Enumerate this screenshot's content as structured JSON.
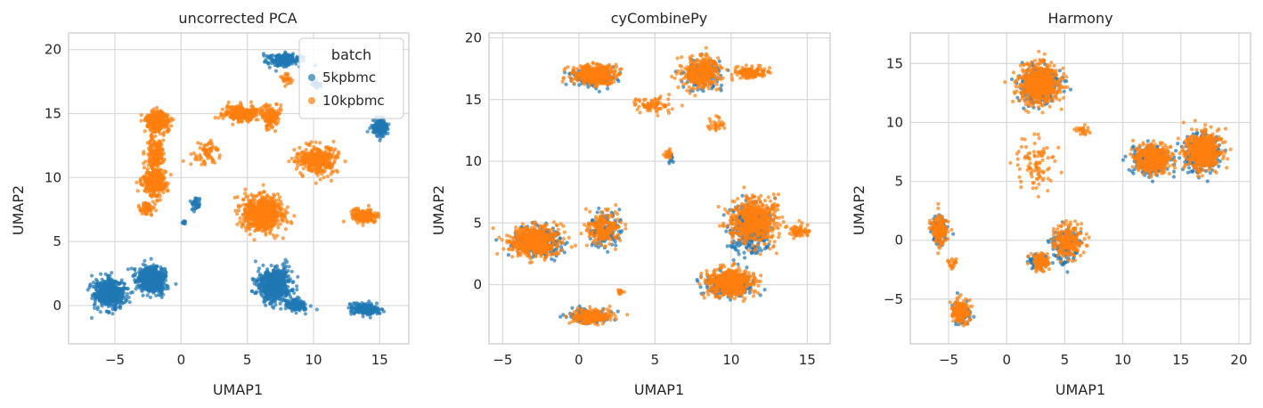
{
  "figure": {
    "marker_colors": {
      "5kpbmc": "#1f77b4",
      "10kpbmc": "#ff7f0e"
    },
    "grid_color": "#d9d9d9",
    "frame_color": "#cccccc"
  },
  "chart_data": [
    {
      "type": "scatter",
      "title": "uncorrected PCA",
      "xlabel": "UMAP1",
      "ylabel": "UMAP2",
      "xlim": [
        -8.5,
        17.2
      ],
      "ylim": [
        -3.0,
        21.3
      ],
      "xticks": [
        -5,
        0,
        5,
        10,
        15
      ],
      "yticks": [
        0,
        5,
        10,
        15,
        20
      ],
      "grid": true,
      "legend": {
        "title": "batch",
        "placement": "top-right",
        "entries": [
          "5kpbmc",
          "10kpbmc"
        ]
      },
      "series": [
        {
          "name": "5kpbmc",
          "color": "#1f77b4",
          "clusters": [
            {
              "x": -5.4,
              "y": 1.0,
              "sx": 1.0,
              "sy": 1.0,
              "n": 520
            },
            {
              "x": -2.2,
              "y": 2.0,
              "sx": 1.0,
              "sy": 0.9,
              "n": 520
            },
            {
              "x": 7.0,
              "y": 1.6,
              "sx": 1.1,
              "sy": 1.2,
              "n": 650
            },
            {
              "x": 8.7,
              "y": 0.0,
              "sx": 0.8,
              "sy": 0.5,
              "n": 120
            },
            {
              "x": 14.0,
              "y": -0.3,
              "sx": 0.9,
              "sy": 0.4,
              "n": 230
            },
            {
              "x": 7.8,
              "y": 19.2,
              "sx": 1.2,
              "sy": 0.45,
              "n": 220
            },
            {
              "x": 15.0,
              "y": 13.9,
              "sx": 0.45,
              "sy": 0.6,
              "n": 210
            },
            {
              "x": 1.1,
              "y": 7.9,
              "sx": 0.4,
              "sy": 0.6,
              "n": 40
            },
            {
              "x": 0.2,
              "y": 6.5,
              "sx": 0.15,
              "sy": 0.15,
              "n": 10
            },
            {
              "x": 10.2,
              "y": 17.3,
              "sx": 0.4,
              "sy": 0.4,
              "n": 25
            }
          ]
        },
        {
          "name": "10kpbmc",
          "color": "#ff7f0e",
          "clusters": [
            {
              "x": -1.8,
              "y": 14.4,
              "sx": 0.8,
              "sy": 0.7,
              "n": 360
            },
            {
              "x": -1.9,
              "y": 11.8,
              "sx": 0.6,
              "sy": 1.2,
              "n": 200
            },
            {
              "x": -2.0,
              "y": 9.6,
              "sx": 0.8,
              "sy": 0.9,
              "n": 320
            },
            {
              "x": -2.6,
              "y": 7.6,
              "sx": 0.5,
              "sy": 0.5,
              "n": 60
            },
            {
              "x": 4.5,
              "y": 15.0,
              "sx": 1.2,
              "sy": 0.55,
              "n": 260
            },
            {
              "x": 6.8,
              "y": 14.7,
              "sx": 0.6,
              "sy": 0.9,
              "n": 130
            },
            {
              "x": 2.0,
              "y": 12.0,
              "sx": 1.0,
              "sy": 0.9,
              "n": 70
            },
            {
              "x": 6.2,
              "y": 7.2,
              "sx": 1.4,
              "sy": 1.2,
              "n": 760
            },
            {
              "x": 10.3,
              "y": 11.3,
              "sx": 1.4,
              "sy": 1.0,
              "n": 330
            },
            {
              "x": 13.8,
              "y": 7.0,
              "sx": 0.8,
              "sy": 0.4,
              "n": 230
            },
            {
              "x": 8.0,
              "y": 17.7,
              "sx": 0.4,
              "sy": 0.4,
              "n": 25
            }
          ]
        }
      ]
    },
    {
      "type": "scatter",
      "title": "cyCombinePy",
      "xlabel": "UMAP1",
      "ylabel": "UMAP2",
      "xlim": [
        -5.9,
        16.5
      ],
      "ylim": [
        -4.8,
        20.4
      ],
      "xticks": [
        -5,
        0,
        5,
        10,
        15
      ],
      "yticks": [
        0,
        5,
        10,
        15,
        20
      ],
      "grid": true,
      "series": [
        {
          "name": "5kpbmc",
          "color": "#1f77b4",
          "clusters": [
            {
              "x": -2.7,
              "y": 3.4,
              "sx": 1.3,
              "sy": 1.0,
              "n": 350
            },
            {
              "x": 1.8,
              "y": 4.4,
              "sx": 0.9,
              "sy": 1.4,
              "n": 130
            },
            {
              "x": 0.7,
              "y": -2.5,
              "sx": 1.1,
              "sy": 0.5,
              "n": 120
            },
            {
              "x": 9.8,
              "y": 0.0,
              "sx": 1.3,
              "sy": 0.9,
              "n": 320
            },
            {
              "x": 11.2,
              "y": 4.5,
              "sx": 1.2,
              "sy": 1.8,
              "n": 340
            },
            {
              "x": 1.0,
              "y": 16.9,
              "sx": 1.2,
              "sy": 0.7,
              "n": 150
            },
            {
              "x": 8.2,
              "y": 17.0,
              "sx": 1.2,
              "sy": 1.1,
              "n": 130
            },
            {
              "x": 6.0,
              "y": 10.3,
              "sx": 0.25,
              "sy": 0.4,
              "n": 15
            }
          ]
        },
        {
          "name": "10kpbmc",
          "color": "#ff7f0e",
          "clusters": [
            {
              "x": -2.9,
              "y": 3.5,
              "sx": 1.4,
              "sy": 1.0,
              "n": 650
            },
            {
              "x": 1.6,
              "y": 4.5,
              "sx": 1.0,
              "sy": 1.3,
              "n": 200
            },
            {
              "x": 0.8,
              "y": -2.6,
              "sx": 1.1,
              "sy": 0.5,
              "n": 220
            },
            {
              "x": 10.0,
              "y": 0.2,
              "sx": 1.4,
              "sy": 1.0,
              "n": 520
            },
            {
              "x": 11.5,
              "y": 5.2,
              "sx": 1.4,
              "sy": 1.6,
              "n": 560
            },
            {
              "x": 14.5,
              "y": 4.4,
              "sx": 0.6,
              "sy": 0.4,
              "n": 60
            },
            {
              "x": 1.0,
              "y": 17.0,
              "sx": 1.3,
              "sy": 0.7,
              "n": 450
            },
            {
              "x": 8.1,
              "y": 17.2,
              "sx": 1.2,
              "sy": 1.2,
              "n": 330
            },
            {
              "x": 11.3,
              "y": 17.2,
              "sx": 0.9,
              "sy": 0.4,
              "n": 140
            },
            {
              "x": 4.8,
              "y": 14.5,
              "sx": 1.2,
              "sy": 0.6,
              "n": 80
            },
            {
              "x": 9.0,
              "y": 13.0,
              "sx": 0.5,
              "sy": 0.5,
              "n": 30
            },
            {
              "x": 5.9,
              "y": 10.6,
              "sx": 0.25,
              "sy": 0.5,
              "n": 20
            },
            {
              "x": 2.7,
              "y": -0.6,
              "sx": 0.35,
              "sy": 0.25,
              "n": 12
            }
          ]
        }
      ]
    },
    {
      "type": "scatter",
      "title": "Harmony",
      "xlabel": "UMAP1",
      "ylabel": "UMAP2",
      "xlim": [
        -8.3,
        21.0
      ],
      "ylim": [
        -8.8,
        17.6
      ],
      "xticks": [
        -5,
        0,
        5,
        10,
        15,
        20
      ],
      "yticks": [
        -5,
        0,
        5,
        10,
        15
      ],
      "grid": true,
      "series": [
        {
          "name": "5kpbmc",
          "color": "#1f77b4",
          "clusters": [
            {
              "x": 2.8,
              "y": 13.2,
              "sx": 1.4,
              "sy": 1.4,
              "n": 320
            },
            {
              "x": 12.5,
              "y": 6.8,
              "sx": 1.3,
              "sy": 1.0,
              "n": 330
            },
            {
              "x": 16.8,
              "y": 7.3,
              "sx": 1.3,
              "sy": 1.3,
              "n": 330
            },
            {
              "x": -5.8,
              "y": 0.8,
              "sx": 0.6,
              "sy": 1.0,
              "n": 110
            },
            {
              "x": -3.9,
              "y": -6.2,
              "sx": 0.6,
              "sy": 0.8,
              "n": 110
            },
            {
              "x": 5.0,
              "y": -0.5,
              "sx": 1.1,
              "sy": 1.3,
              "n": 110
            },
            {
              "x": 2.6,
              "y": -1.8,
              "sx": 0.6,
              "sy": 0.6,
              "n": 60
            }
          ]
        },
        {
          "name": "10kpbmc",
          "color": "#ff7f0e",
          "clusters": [
            {
              "x": 2.8,
              "y": 13.3,
              "sx": 1.5,
              "sy": 1.5,
              "n": 680
            },
            {
              "x": 12.6,
              "y": 6.9,
              "sx": 1.3,
              "sy": 1.0,
              "n": 480
            },
            {
              "x": 16.9,
              "y": 7.6,
              "sx": 1.3,
              "sy": 1.4,
              "n": 520
            },
            {
              "x": -5.8,
              "y": 0.9,
              "sx": 0.7,
              "sy": 1.0,
              "n": 200
            },
            {
              "x": -3.9,
              "y": -6.0,
              "sx": 0.6,
              "sy": 0.8,
              "n": 200
            },
            {
              "x": 5.3,
              "y": -0.1,
              "sx": 1.1,
              "sy": 1.3,
              "n": 220
            },
            {
              "x": 2.9,
              "y": -1.8,
              "sx": 0.7,
              "sy": 0.7,
              "n": 120
            },
            {
              "x": 2.5,
              "y": 6.5,
              "sx": 1.5,
              "sy": 2.0,
              "n": 90
            },
            {
              "x": 6.6,
              "y": 9.4,
              "sx": 0.6,
              "sy": 0.4,
              "n": 25
            },
            {
              "x": -4.7,
              "y": -2.0,
              "sx": 0.3,
              "sy": 0.6,
              "n": 20
            }
          ]
        }
      ]
    }
  ]
}
